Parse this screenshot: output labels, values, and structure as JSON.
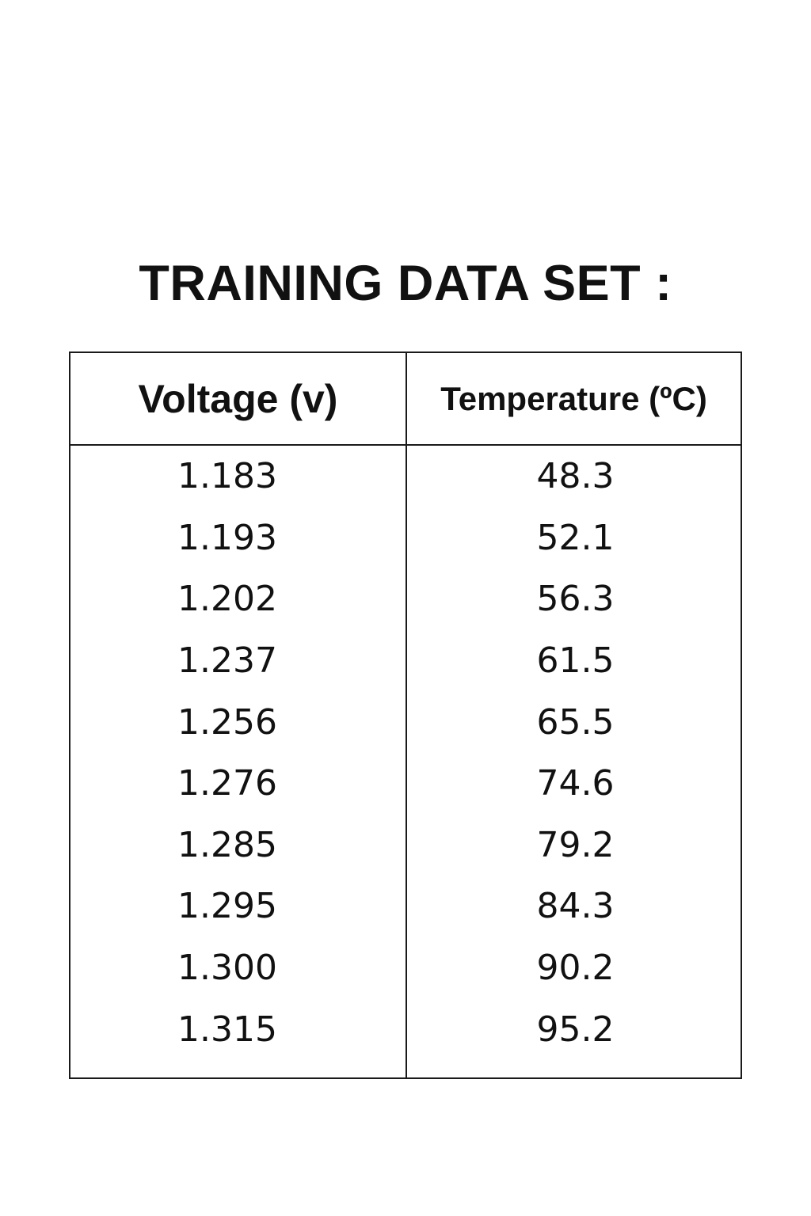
{
  "title": "TRAINING DATA SET :",
  "table": {
    "headers": [
      "Voltage (v)",
      "Temperature (ºC)"
    ],
    "rows": [
      [
        "1.183",
        "48.3"
      ],
      [
        "1.193",
        "52.1"
      ],
      [
        "1.202",
        "56.3"
      ],
      [
        "1.237",
        "61.5"
      ],
      [
        "1.256",
        "65.5"
      ],
      [
        "1.276",
        "74.6"
      ],
      [
        "1.285",
        "79.2"
      ],
      [
        "1.295",
        "84.3"
      ],
      [
        "1.300",
        "90.2"
      ],
      [
        "1.315",
        "95.2"
      ]
    ]
  }
}
